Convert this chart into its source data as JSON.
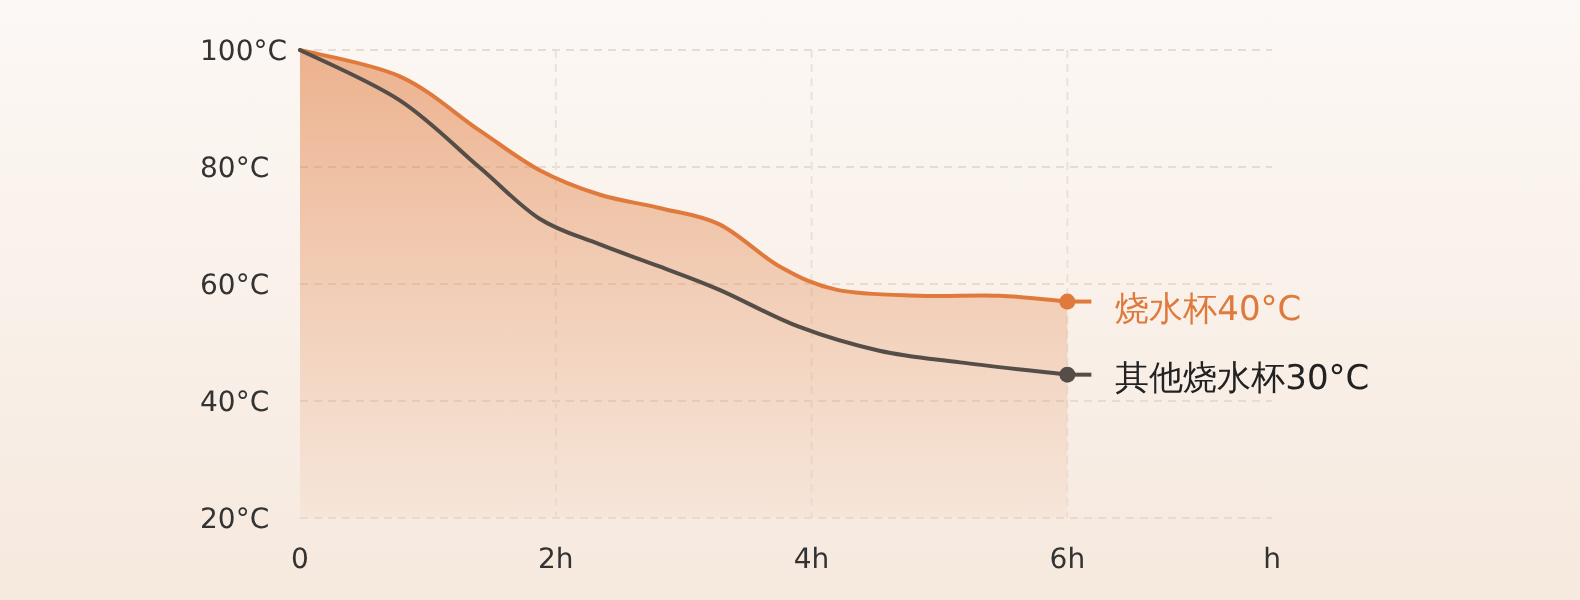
{
  "chart_data": {
    "type": "line",
    "xlabel": "h",
    "xlim": [
      0,
      7.6
    ],
    "ylim": [
      20,
      100
    ],
    "xticks": [
      0,
      {
        "value": 2,
        "label": "2h"
      },
      {
        "value": 4,
        "label": "4h"
      },
      {
        "value": 6,
        "label": "6h"
      }
    ],
    "yticks": [
      {
        "value": 20,
        "label": "20°C"
      },
      {
        "value": 40,
        "label": "40°C"
      },
      {
        "value": 60,
        "label": "60°C"
      },
      {
        "value": 80,
        "label": "80°C"
      },
      {
        "value": 100,
        "label": "100°C"
      }
    ],
    "grid": true,
    "legend": "right",
    "series": [
      {
        "name": "烧水杯40°C",
        "type": "area",
        "color": "#e07a3c",
        "x": [
          0,
          0.78,
          1.4,
          1.87,
          2.34,
          2.81,
          3.28,
          3.75,
          4.2,
          4.84,
          5.47,
          6
        ],
        "values": [
          100,
          95.5,
          86.3,
          79.5,
          75.3,
          73,
          70.2,
          63,
          59,
          58,
          58,
          57
        ]
      },
      {
        "name": "其他烧水杯30°C",
        "color": "#554d47",
        "x": [
          0,
          0.78,
          1.4,
          1.87,
          2.34,
          2.81,
          3.28,
          3.9,
          4.53,
          5.16,
          6
        ],
        "values": [
          100,
          91.4,
          80,
          71.2,
          66.8,
          63,
          59,
          52.7,
          48.6,
          46.6,
          44.5
        ]
      }
    ]
  }
}
